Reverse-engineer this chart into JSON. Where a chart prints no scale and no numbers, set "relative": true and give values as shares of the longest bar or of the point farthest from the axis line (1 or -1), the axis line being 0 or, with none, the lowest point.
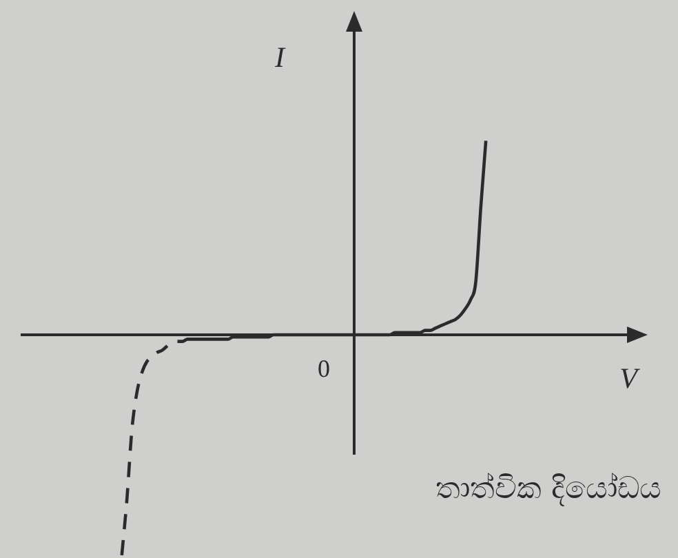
{
  "chart_data": {
    "type": "line",
    "xlabel": "V",
    "ylabel": "I",
    "annotations": [
      "0",
      "තාත්වික දියෝඩය"
    ],
    "relative": true,
    "marker": "none",
    "categories": [
      null,
      null,
      null,
      null,
      null,
      null,
      null,
      null,
      null,
      null,
      null,
      null,
      null,
      null,
      null,
      null,
      null,
      null,
      null,
      null,
      null,
      null,
      null,
      null,
      null,
      null,
      null,
      null,
      null,
      null,
      null,
      null,
      null,
      null,
      null,
      null,
      null,
      null,
      null,
      null,
      null,
      null,
      null,
      null,
      null,
      null,
      null,
      null,
      null,
      null,
      null,
      null,
      null,
      null,
      null,
      null,
      null,
      null,
      null,
      null,
      null,
      null,
      null,
      null,
      null,
      null,
      null,
      null,
      null,
      null,
      null,
      null,
      null,
      null,
      null,
      null,
      null,
      null,
      null,
      null,
      null,
      null,
      null,
      null,
      null,
      null,
      null,
      null,
      null,
      null,
      null,
      null,
      null,
      null,
      null,
      null,
      null,
      null,
      null,
      null,
      null,
      null,
      null,
      null,
      null,
      null,
      null,
      null,
      null,
      null,
      null,
      null,
      null,
      null,
      null,
      null,
      null,
      null,
      null,
      null,
      null,
      null,
      null,
      null,
      null
    ],
    "series": [
      {
        "color": "#2b2b2b",
        "line_style": "solid",
        "values": [
          null,
          null,
          null,
          null,
          null,
          null,
          null,
          null,
          null,
          null,
          null,
          null,
          null,
          null,
          null,
          null,
          null,
          null,
          null,
          null,
          null,
          null,
          null,
          null,
          null,
          null,
          null,
          null,
          null,
          null,
          null,
          -0.03,
          -0.03,
          -0.02,
          -0.02,
          -0.02,
          -0.02,
          -0.02,
          -0.02,
          -0.02,
          -0.02,
          -0.02,
          -0.01,
          -0.01,
          -0.01,
          -0.01,
          -0.01,
          -0.01,
          -0.01,
          -0.01,
          0,
          0,
          0,
          0,
          0,
          0,
          0,
          0,
          0,
          0,
          0,
          0,
          0,
          0,
          0,
          0,
          0,
          0,
          0,
          0,
          0,
          0,
          0,
          0,
          0.01,
          0.01,
          0.01,
          0.01,
          0.01,
          0.01,
          0.02,
          0.02,
          0.03,
          0.04,
          0.05,
          0.06,
          0.07,
          0.09,
          0.12,
          0.16,
          0.24,
          0.58,
          0.88,
          null,
          null,
          null,
          null,
          null,
          null,
          null,
          null,
          null,
          null,
          null,
          null,
          null,
          null,
          null,
          null,
          null,
          null,
          null,
          null,
          null,
          null,
          null,
          null,
          null,
          null,
          null,
          null,
          null,
          null,
          null,
          null
        ]
      },
      {
        "color": "#2b2b2b",
        "line_style": "dashed",
        "values": [
          null,
          null,
          null,
          null,
          null,
          null,
          null,
          null,
          null,
          null,
          null,
          null,
          null,
          null,
          null,
          null,
          null,
          null,
          null,
          null,
          -1,
          -0.75,
          -0.43,
          -0.26,
          -0.17,
          -0.12,
          -0.1,
          -0.08,
          -0.07,
          -0.05,
          null,
          null,
          null,
          null,
          null,
          null,
          null,
          null,
          null,
          null,
          null,
          null,
          null,
          null,
          null,
          null,
          null,
          null,
          null,
          null,
          null,
          null,
          null,
          null,
          null,
          null,
          null,
          null,
          null,
          null,
          null,
          null,
          null,
          null,
          null,
          null,
          null,
          null,
          null,
          null,
          null,
          null,
          null,
          null,
          null,
          null,
          null,
          null,
          null,
          null,
          null,
          null,
          null,
          null,
          null,
          null,
          null,
          null,
          null,
          null,
          null,
          null,
          null,
          null,
          null,
          null,
          null,
          null,
          null,
          null,
          null,
          null,
          null,
          null,
          null,
          null,
          null,
          null,
          null,
          null,
          null,
          null,
          null,
          null,
          null,
          null,
          null,
          null,
          null,
          null,
          null,
          null,
          null,
          null,
          null
        ]
      }
    ]
  }
}
